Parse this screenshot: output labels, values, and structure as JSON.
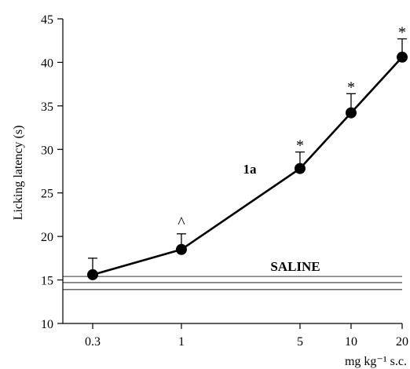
{
  "chart_data": {
    "type": "line",
    "x_scale": "log",
    "xlabel": "mg kg⁻¹ s.c.",
    "ylabel": "Licking latency (s)",
    "ylim": [
      10,
      45
    ],
    "yticks": [
      "10",
      "15",
      "20",
      "25",
      "30",
      "35",
      "40",
      "45"
    ],
    "xticks": [
      {
        "value": 0.3,
        "label": "0.3"
      },
      {
        "value": 1,
        "label": "1"
      },
      {
        "value": 5,
        "label": "5"
      },
      {
        "value": 10,
        "label": "10"
      },
      {
        "value": 20,
        "label": "20"
      }
    ],
    "series": [
      {
        "name": "1a",
        "x": [
          0.3,
          1,
          5,
          10,
          20
        ],
        "y": [
          15.6,
          18.5,
          27.8,
          34.2,
          40.6
        ],
        "error_upper": [
          1.9,
          1.8,
          1.9,
          2.2,
          2.1
        ],
        "markers": [
          "",
          "^",
          "*",
          "*",
          "*"
        ]
      }
    ],
    "reference": {
      "label": "SALINE",
      "mean": 14.7,
      "upper": 15.4,
      "lower": 13.9
    },
    "grid": false
  }
}
